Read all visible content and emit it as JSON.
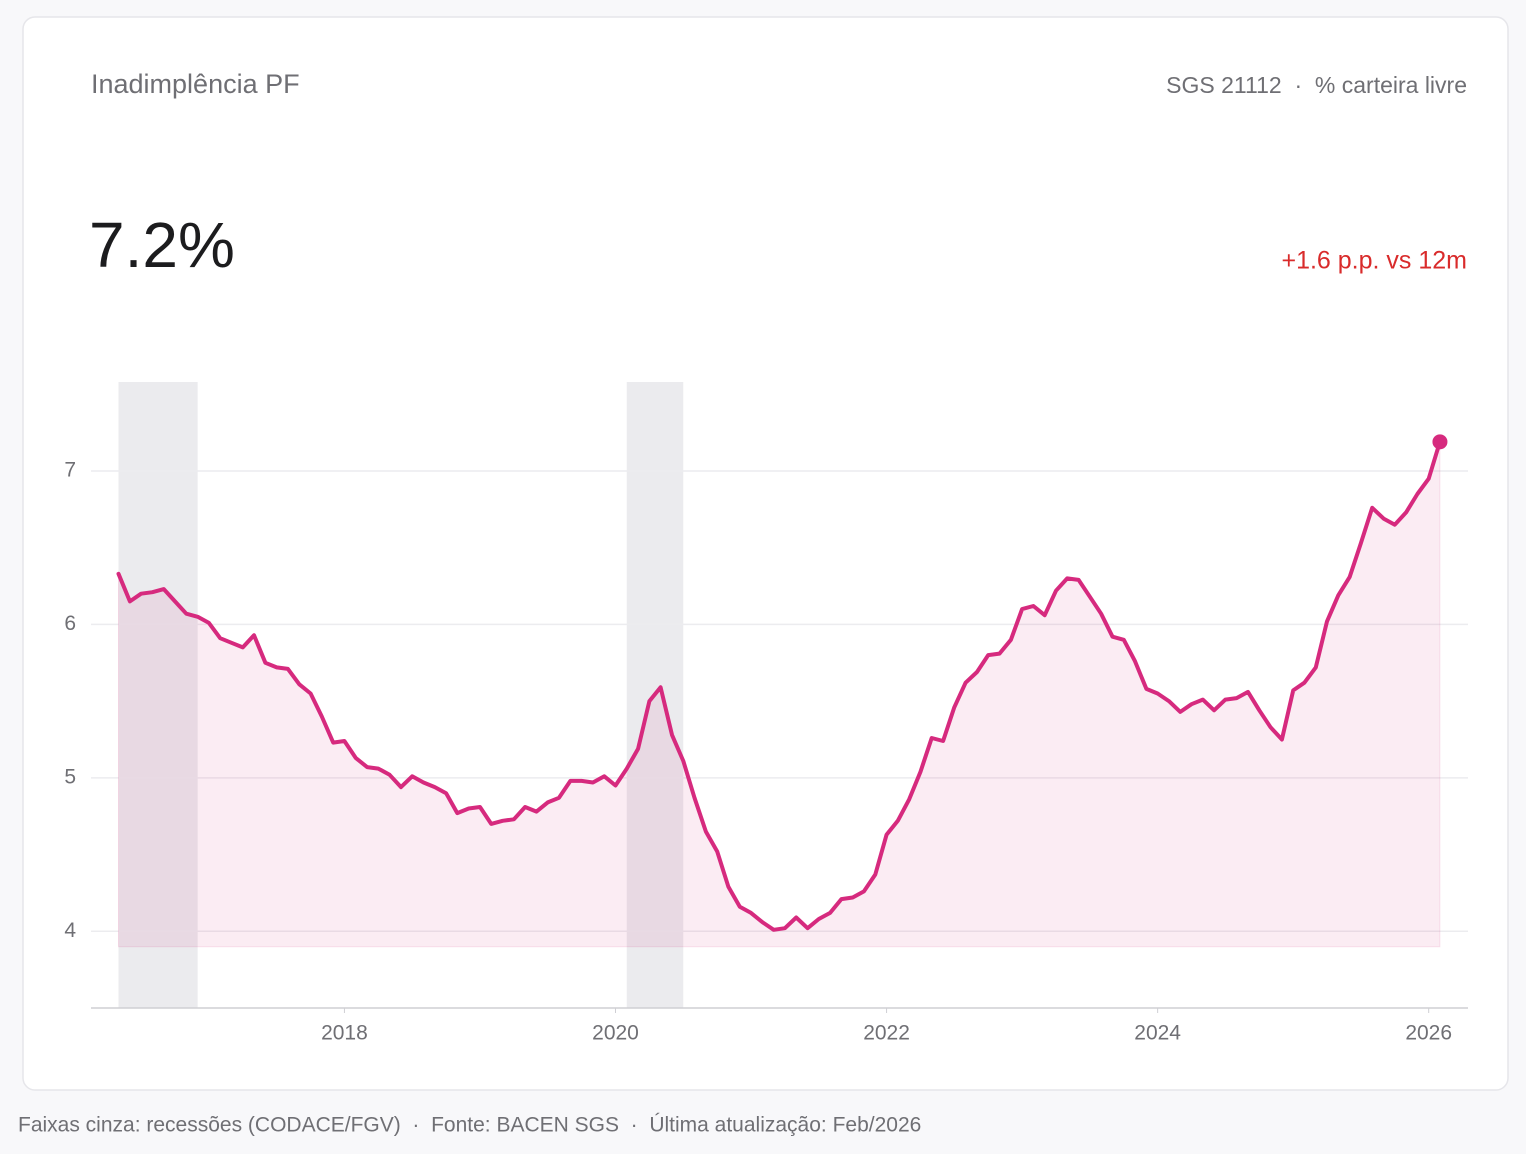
{
  "header": {
    "title": "Inadimplência PF",
    "subtitle": "SGS 21112  ·  % carteira livre"
  },
  "headline": {
    "value": "7.2%",
    "change": "+1.6 p.p. vs 12m"
  },
  "chart_data": {
    "type": "area",
    "color": "#d62a7e",
    "x": [
      2016.333,
      2016.417,
      2016.5,
      2016.583,
      2016.667,
      2016.75,
      2016.833,
      2016.917,
      2017,
      2017.083,
      2017.167,
      2017.25,
      2017.333,
      2017.417,
      2017.5,
      2017.583,
      2017.667,
      2017.75,
      2017.833,
      2017.917,
      2018,
      2018.083,
      2018.167,
      2018.25,
      2018.333,
      2018.417,
      2018.5,
      2018.583,
      2018.667,
      2018.75,
      2018.833,
      2018.917,
      2019,
      2019.083,
      2019.167,
      2019.25,
      2019.333,
      2019.417,
      2019.5,
      2019.583,
      2019.667,
      2019.75,
      2019.833,
      2019.917,
      2020,
      2020.083,
      2020.167,
      2020.25,
      2020.333,
      2020.417,
      2020.5,
      2020.583,
      2020.667,
      2020.75,
      2020.833,
      2020.917,
      2021,
      2021.083,
      2021.167,
      2021.25,
      2021.333,
      2021.417,
      2021.5,
      2021.583,
      2021.667,
      2021.75,
      2021.833,
      2021.917,
      2022,
      2022.083,
      2022.167,
      2022.25,
      2022.333,
      2022.417,
      2022.5,
      2022.583,
      2022.667,
      2022.75,
      2022.833,
      2022.917,
      2023,
      2023.083,
      2023.167,
      2023.25,
      2023.333,
      2023.417,
      2023.5,
      2023.583,
      2023.667,
      2023.75,
      2023.833,
      2023.917,
      2024,
      2024.083,
      2024.167,
      2024.25,
      2024.333,
      2024.417,
      2024.5,
      2024.583,
      2024.667,
      2024.75,
      2024.833,
      2024.917,
      2025,
      2025.083,
      2025.167,
      2025.25,
      2025.333,
      2025.417,
      2025.5,
      2025.583,
      2025.667,
      2025.75,
      2025.833,
      2025.917,
      2026,
      2026.083
    ],
    "values": [
      6.33,
      6.15,
      6.2,
      6.21,
      6.23,
      6.15,
      6.07,
      6.05,
      6.01,
      5.91,
      5.88,
      5.85,
      5.93,
      5.75,
      5.72,
      5.71,
      5.61,
      5.55,
      5.4,
      5.23,
      5.24,
      5.13,
      5.07,
      5.06,
      5.02,
      4.94,
      5.01,
      4.97,
      4.94,
      4.9,
      4.77,
      4.8,
      4.81,
      4.7,
      4.72,
      4.73,
      4.81,
      4.78,
      4.84,
      4.87,
      4.98,
      4.98,
      4.97,
      5.01,
      4.95,
      5.06,
      5.19,
      5.5,
      5.59,
      5.28,
      5.11,
      4.87,
      4.65,
      4.52,
      4.29,
      4.16,
      4.12,
      4.06,
      4.01,
      4.02,
      4.09,
      4.02,
      4.08,
      4.12,
      4.21,
      4.22,
      4.26,
      4.37,
      4.63,
      4.72,
      4.86,
      5.04,
      5.26,
      5.24,
      5.46,
      5.62,
      5.69,
      5.8,
      5.81,
      5.9,
      6.1,
      6.12,
      6.06,
      6.22,
      6.3,
      6.29,
      6.18,
      6.07,
      5.92,
      5.9,
      5.76,
      5.58,
      5.55,
      5.5,
      5.43,
      5.48,
      5.51,
      5.44,
      5.51,
      5.52,
      5.56,
      5.44,
      5.33,
      5.25,
      5.57,
      5.62,
      5.72,
      6.02,
      6.19,
      6.31,
      6.53,
      6.76,
      6.69,
      6.65,
      6.73,
      6.85,
      6.95,
      7.19
    ],
    "recessions": [
      [
        2016.333,
        2016.917
      ],
      [
        2020.083,
        2020.5
      ]
    ],
    "xlim": [
      2016.13,
      2026.29
    ],
    "xticks": [
      2018,
      2020,
      2022,
      2024,
      2026
    ],
    "ylim": [
      3.5,
      7.58
    ],
    "yticks": [
      4,
      5,
      6,
      7
    ],
    "grid": true,
    "note": "Faixas cinza: recessões (CODACE/FGV)  ·  Fonte: BACEN SGS  ·  Última atualização: Feb/2026"
  }
}
